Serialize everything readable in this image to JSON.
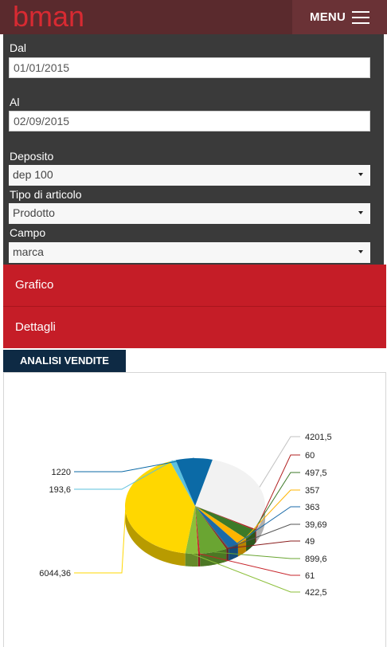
{
  "header": {
    "logo_text": "bman",
    "menu_label": "MENU"
  },
  "colors": {
    "brand_dark": "#5a2a2d",
    "logo_red": "#d82a32",
    "panel": "#3a3a3a",
    "accent_red": "#c51d27",
    "tab_navy": "#0e2a44"
  },
  "filters": {
    "dal_label": "Dal",
    "dal_value": "01/01/2015",
    "al_label": "Al",
    "al_value": "02/09/2015",
    "deposito_label": "Deposito",
    "deposito_value": "dep 100",
    "tipo_label": "Tipo di articolo",
    "tipo_value": "Prodotto",
    "campo_label": "Campo",
    "campo_value": "marca"
  },
  "actions": {
    "grafico_label": "Grafico",
    "dettagli_label": "Dettagli"
  },
  "tab": {
    "title": "ANALISI VENDITE"
  },
  "chart_data": {
    "type": "pie",
    "title": "",
    "values": [
      4201.5,
      60,
      497.5,
      357,
      363,
      39.69,
      49,
      899.6,
      61,
      422.5,
      6044.36,
      193.6,
      1220
    ],
    "labels": [
      "4201,5",
      "60",
      "497,5",
      "357",
      "363",
      "39,69",
      "49",
      "899,6",
      "61",
      "422,5",
      "6044,36",
      "193,6",
      "1220"
    ],
    "colors": [
      "#f2f2f2",
      "#b22222",
      "#3d7a28",
      "#ffb400",
      "#1a6aa8",
      "#555555",
      "#8a1d1d",
      "#6aa532",
      "#c7252b",
      "#8cbf3a",
      "#ffd700",
      "#5bc0de",
      "#0b6aa6"
    ],
    "label_side": [
      "right",
      "right",
      "right",
      "right",
      "right",
      "right",
      "right",
      "right",
      "right",
      "right",
      "left",
      "left",
      "left"
    ]
  }
}
